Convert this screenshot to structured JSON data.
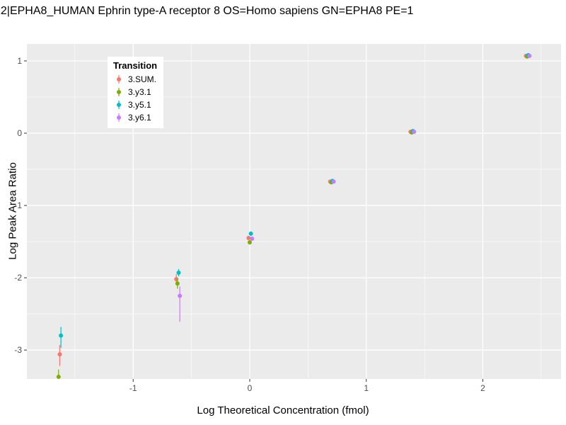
{
  "title": "22|EPHA8_HUMAN Ephrin type-A receptor 8 OS=Homo sapiens GN=EPHA8 PE=1",
  "chart_data": {
    "type": "scatter",
    "title": "22|EPHA8_HUMAN Ephrin type-A receptor 8 OS=Homo sapiens GN=EPHA8 PE=1",
    "xlabel": "Log Theoretical Concentration (fmol)",
    "ylabel": "Log Peak Area Ratio",
    "xlim": [
      -1.912,
      2.671
    ],
    "ylim": [
      -3.4,
      1.235
    ],
    "xticks": [
      -1,
      0,
      1,
      2
    ],
    "yticks": [
      1,
      0,
      -1,
      -2,
      -3
    ],
    "grid": true,
    "panel_bg": "#EBEBEB",
    "grid_color": "#FFFFFF",
    "tick_label_color": "#4D4D4D",
    "legend_title": "Transition",
    "legend_position": "inside-top-left",
    "series": [
      {
        "name": "3.SUM.",
        "color": "#F8766D",
        "points": [
          [
            -1.63,
            -3.06,
            -3.22,
            -2.93
          ],
          [
            -0.63,
            -2.02,
            -2.1,
            -1.95
          ],
          [
            -0.01,
            -1.45,
            -1.48,
            -1.42
          ],
          [
            0.69,
            -0.67
          ],
          [
            1.38,
            0.02
          ],
          [
            2.37,
            1.07
          ]
        ]
      },
      {
        "name": "3.y3.1",
        "color": "#7CAE00",
        "points": [
          [
            -1.64,
            -3.37,
            -3.5,
            -3.27
          ],
          [
            -0.62,
            -2.08,
            -2.15,
            -2.01
          ],
          [
            0.0,
            -1.51,
            -1.54,
            -1.48
          ],
          [
            0.7,
            -0.68
          ],
          [
            1.39,
            0.01
          ],
          [
            2.38,
            1.06
          ]
        ]
      },
      {
        "name": "3.y5.1",
        "color": "#00BFC4",
        "points": [
          [
            -1.62,
            -2.8,
            -2.97,
            -2.68
          ],
          [
            -0.61,
            -1.93,
            -1.98,
            -1.88
          ],
          [
            0.01,
            -1.39,
            -1.42,
            -1.36
          ],
          [
            0.71,
            -0.66
          ],
          [
            1.4,
            0.03
          ],
          [
            2.39,
            1.08
          ]
        ]
      },
      {
        "name": "3.y6.1",
        "color": "#C77CFF",
        "points": [
          [
            -0.6,
            -2.25,
            -2.61,
            -2.12
          ],
          [
            0.02,
            -1.46,
            -1.49,
            -1.43
          ],
          [
            0.72,
            -0.67
          ],
          [
            1.41,
            0.02
          ],
          [
            2.4,
            1.07
          ]
        ]
      }
    ]
  }
}
